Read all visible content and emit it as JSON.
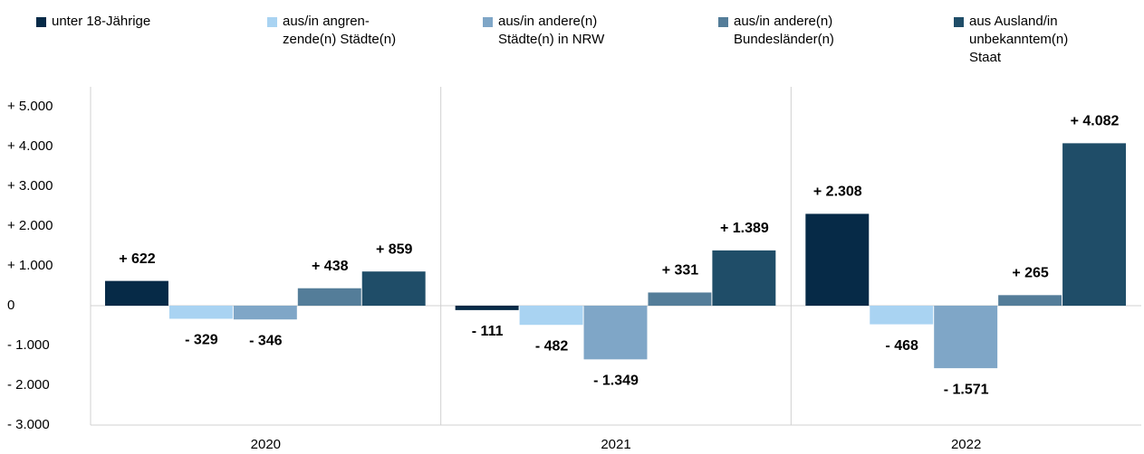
{
  "chart_data": {
    "type": "bar",
    "categories": [
      "2020",
      "2021",
      "2022"
    ],
    "series": [
      {
        "name": "unter 18-Jährige",
        "color": "#062a47",
        "values": [
          622,
          -111,
          2308
        ],
        "value_labels": [
          "+ 622",
          "- 111",
          "+ 2.308"
        ]
      },
      {
        "name": "aus/in angren-\nzende(n) Städte(n)",
        "color": "#a9d3f2",
        "values": [
          -329,
          -482,
          -468
        ],
        "value_labels": [
          "- 329",
          "- 482",
          "- 468"
        ]
      },
      {
        "name": "aus/in andere(n)\nStädte(n) in NRW",
        "color": "#7fa6c7",
        "values": [
          -346,
          -1349,
          -1571
        ],
        "value_labels": [
          "- 346",
          "- 1.349",
          "- 1.571"
        ]
      },
      {
        "name": "aus/in andere(n)\nBundesländer(n)",
        "color": "#547d99",
        "values": [
          438,
          331,
          265
        ],
        "value_labels": [
          "+ 438",
          "+ 331",
          "+ 265"
        ]
      },
      {
        "name": "aus Ausland/in\nunbekanntem(n)\nStaat",
        "color": "#1f4d68",
        "values": [
          859,
          1389,
          4082
        ],
        "value_labels": [
          "+ 859",
          "+ 1.389",
          "+ 4.082"
        ]
      }
    ],
    "ylim": [
      -3000,
      5500
    ],
    "yticks": [
      {
        "value": -3000,
        "label": "- 3.000"
      },
      {
        "value": -2000,
        "label": "- 2.000"
      },
      {
        "value": -1000,
        "label": "- 1.000"
      },
      0,
      {
        "value": 1000,
        "label": "+ 1.000"
      },
      {
        "value": 2000,
        "label": "+ 2.000"
      },
      {
        "value": 3000,
        "label": "+ 3.000"
      },
      {
        "value": 4000,
        "label": "+ 4.000"
      },
      {
        "value": 5000,
        "label": "+ 5.000"
      }
    ],
    "grid": false
  }
}
